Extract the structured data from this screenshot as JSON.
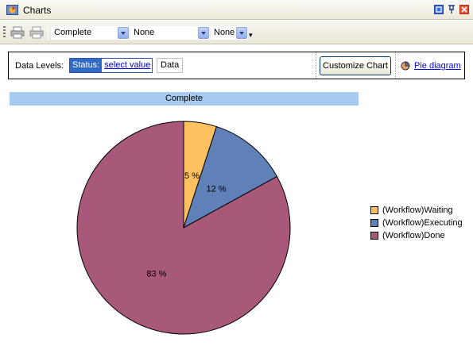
{
  "window": {
    "title": "Charts",
    "icon": "charts-app-icon"
  },
  "toolbar": {
    "print_icon": "printer-icon",
    "preview_icon": "print-preview-icon",
    "combo1": {
      "value": "Complete"
    },
    "combo2": {
      "value": "None"
    },
    "combo3": {
      "value": "None"
    },
    "overflow": "▾"
  },
  "levels": {
    "label": "Data Levels:",
    "status_label": "Status:",
    "select_value": "select value",
    "data_label": "Data",
    "customize_label": "Customize Chart",
    "pie_link": "Pie diagram"
  },
  "colors": {
    "title_bar": "#a6caf0",
    "waiting": "#ffc060",
    "executing": "#6080b8",
    "done": "#a85878"
  },
  "chart_data": {
    "type": "pie",
    "title": "Complete",
    "categories": [
      "(Workflow)Waiting",
      "(Workflow)Executing",
      "(Workflow)Done"
    ],
    "values": [
      5,
      12,
      83
    ],
    "labels": [
      "5 %",
      "12 %",
      "83 %"
    ],
    "colors": [
      "#ffc060",
      "#6080b8",
      "#a85878"
    ],
    "legend": "right"
  }
}
